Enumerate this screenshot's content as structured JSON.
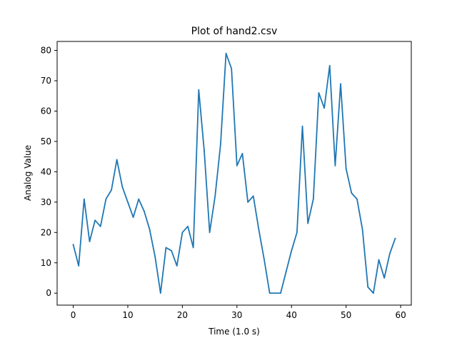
{
  "chart_data": {
    "type": "line",
    "title": "Plot of hand2.csv",
    "xlabel": "Time (1.0 s)",
    "ylabel": "Analog Value",
    "xlim": [
      -2.95,
      61.95
    ],
    "ylim": [
      -3.95,
      82.95
    ],
    "grid": false,
    "legend": "none",
    "line_color": "#1f77b4",
    "xticks": [
      0,
      10,
      20,
      30,
      40,
      50,
      60
    ],
    "yticks": [
      0,
      10,
      20,
      30,
      40,
      50,
      60,
      70,
      80
    ],
    "series": [
      {
        "x": [
          0,
          1,
          2,
          3,
          4,
          5,
          6,
          7,
          8,
          9,
          10,
          11,
          12,
          13,
          14,
          15,
          16,
          17,
          18,
          19,
          20,
          21,
          22,
          23,
          24,
          25,
          26,
          27,
          28,
          29,
          30,
          31,
          32,
          33,
          34,
          35,
          36,
          37,
          38,
          39,
          40,
          41,
          42,
          43,
          44,
          45,
          46,
          47,
          48,
          49,
          50,
          51,
          52,
          53,
          54,
          55,
          56,
          57,
          58,
          59
        ],
        "values": [
          16,
          9,
          31,
          17,
          24,
          22,
          31,
          34,
          44,
          35,
          30,
          25,
          31,
          27,
          21,
          12,
          0,
          15,
          14,
          9,
          20,
          22,
          15,
          67,
          47,
          20,
          32,
          49,
          79,
          74,
          42,
          46,
          30,
          32,
          21,
          11,
          0,
          0,
          0,
          7,
          14,
          20,
          55,
          23,
          31,
          66,
          61,
          75,
          42,
          69,
          41,
          33,
          31,
          21,
          2,
          0,
          11,
          5,
          13,
          18
        ]
      }
    ]
  }
}
